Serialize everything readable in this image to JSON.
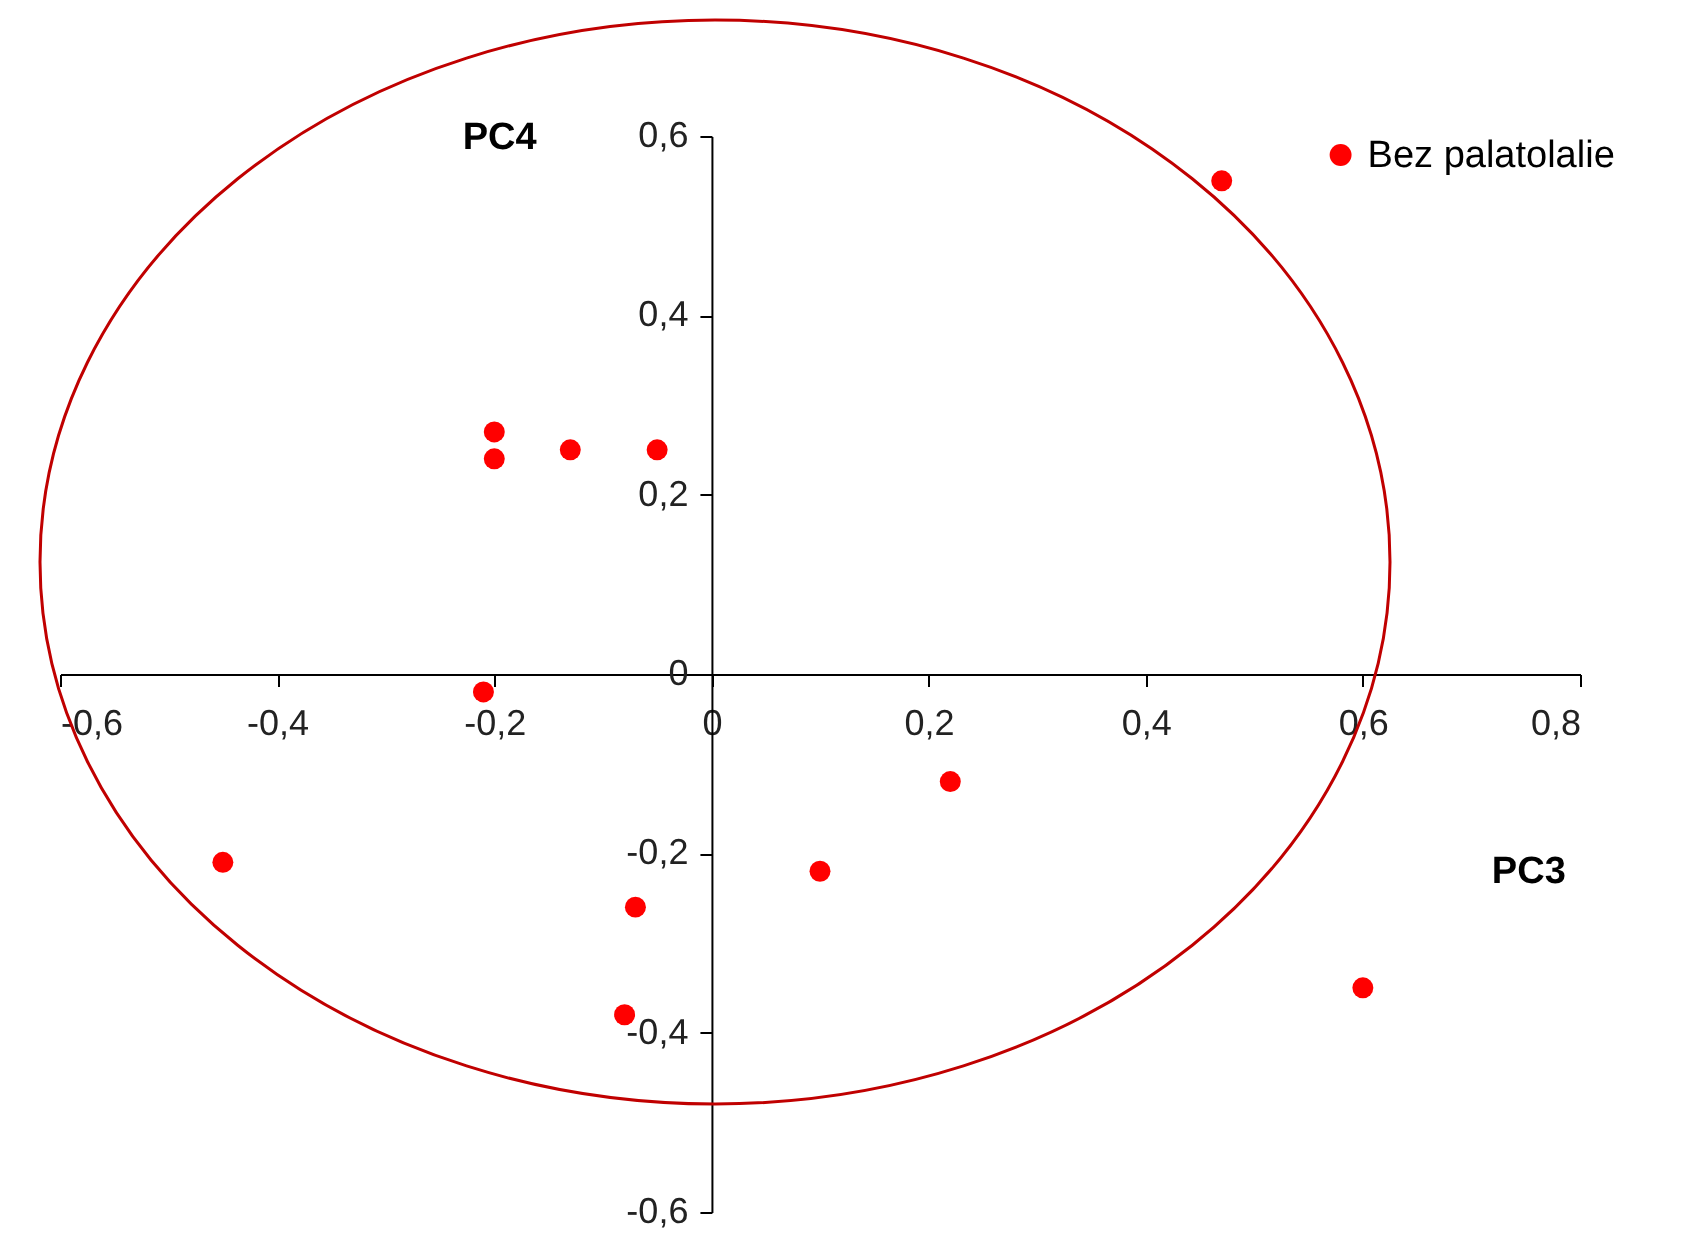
{
  "chart_data": {
    "type": "scatter",
    "xlabel": "PC3",
    "ylabel": "PC4",
    "x": [
      0.47,
      -0.2,
      -0.2,
      -0.13,
      -0.05,
      -0.21,
      -0.45,
      -0.07,
      -0.08,
      0.1,
      0.22,
      0.6
    ],
    "series": [
      {
        "name": "Bez palatolalie",
        "color": "#ff0000",
        "values": [
          0.55,
          0.27,
          0.24,
          0.25,
          0.25,
          -0.02,
          -0.21,
          -0.26,
          -0.38,
          -0.22,
          -0.12,
          -0.35
        ]
      }
    ],
    "xlim": [
      -0.6,
      0.8
    ],
    "ylim": [
      -0.6,
      0.6
    ],
    "xticks": [
      {
        "value": -0.6,
        "label": "-0,6"
      },
      {
        "value": -0.4,
        "label": "-0,4"
      },
      {
        "value": -0.2,
        "label": "-0,2"
      },
      0,
      {
        "value": 0.2,
        "label": "0,2"
      },
      {
        "value": 0.4,
        "label": "0,4"
      },
      {
        "value": 0.6,
        "label": "0,6"
      },
      {
        "value": 0.8,
        "label": "0,8"
      }
    ],
    "yticks": [
      {
        "value": -0.6,
        "label": "-0,6"
      },
      {
        "value": -0.4,
        "label": "-0,4"
      },
      {
        "value": -0.2,
        "label": "-0,2"
      },
      0,
      {
        "value": 0.2,
        "label": "0,2"
      },
      {
        "value": 0.4,
        "label": "0,4"
      },
      {
        "value": 0.6,
        "label": "0,6"
      }
    ],
    "grid": false,
    "legend": "top right",
    "marker": "circle"
  }
}
